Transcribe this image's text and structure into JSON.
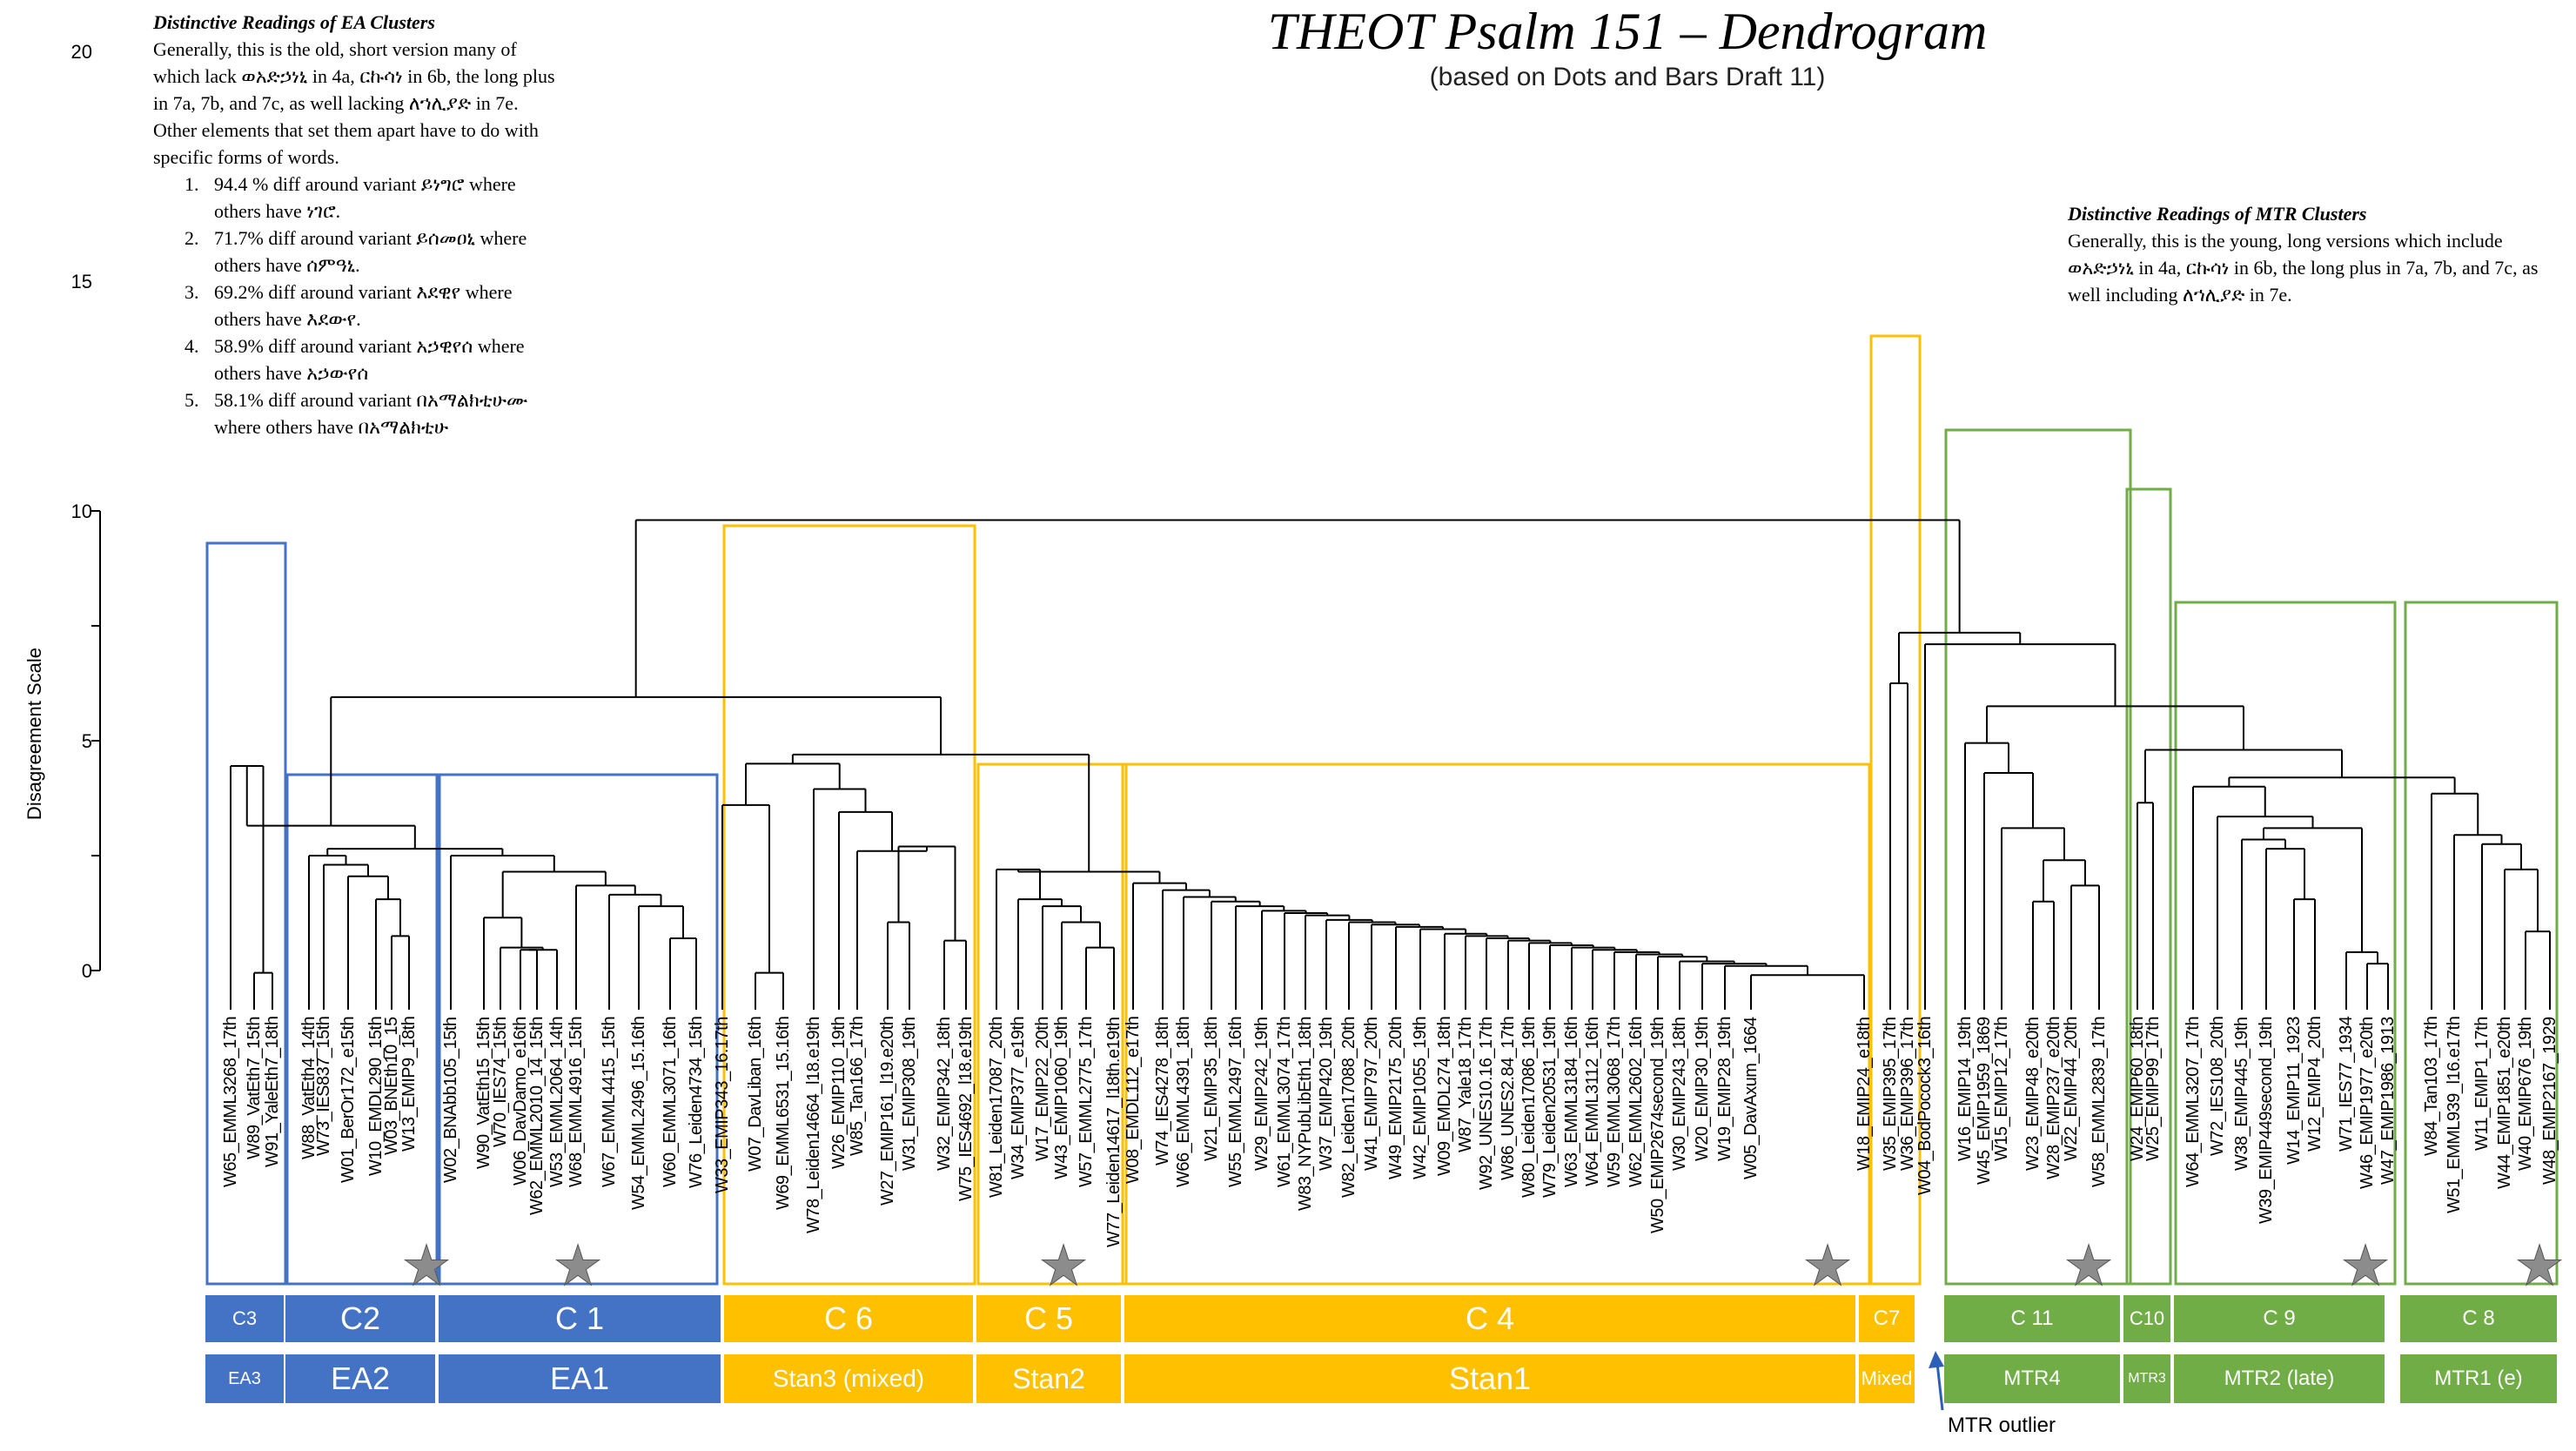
{
  "title": "THEOT Psalm 151 – Dendrogram",
  "subtitle": "(based on Dots and Bars Draft 11)",
  "y_axis": {
    "title": "Disagreement Scale",
    "ticks": [
      "0",
      "5",
      "10",
      "15",
      "20"
    ]
  },
  "ea_notes": {
    "heading": "Distinctive Readings of EA Clusters",
    "intro": "Generally, this is the old, short version many of which lack ወአድኃነኒ in 4a, ርኩሳነ in 6b, the long plus in 7a, 7b, and 7c, as well lacking ለኀሊያድ in 7e. Other elements that set them apart have to do with specific forms of words.",
    "items": [
      "94.4 % diff around variant ይነግሮ where others have ነገሮ.",
      "71.7% diff around variant ይሰመዐኒ where others have ሰምዓኒ.",
      "69.2% diff around variant እደዊየ where others have እደውየ.",
      "58.9% diff around variant አኃዊየሰ where others have አኃውየሰ",
      "58.1% diff around variant በአማልክቲሁሙ where others have በአማልክቲሁ"
    ]
  },
  "mtr_notes": {
    "heading": "Distinctive Readings of MTR Clusters",
    "intro": "Generally, this is the young, long versions which include ወአድኃነኒ in 4a, ርኩሳነ in 6b, the long plus in 7a, 7b, and 7c, as well including ለኀሊያድ in 7e."
  },
  "leaves": [
    "W65_EMML3268_17th",
    "W89_VatEth7_15th",
    "W91_YaleEth7_18th",
    "W88_VatEth4_14th",
    "W73_IES837_15th",
    "W01_BerOr172_e15th",
    "W10_EMDL290_15th",
    "W03_BNEth10_15",
    "W13_EMIP9_18th",
    "W02_BNAbb105_15th",
    "W90_VatEth15_15th",
    "W70_IES74_15th",
    "W06_DavDamo_e16th",
    "W62_EMML2010_14_15th",
    "W53_EMML2064_14th",
    "W68_EMML4916_15th",
    "W67_EMML4415_15th",
    "W54_EMML2496_15.16th",
    "W60_EMML3071_16th",
    "W76_Leiden4734_15th",
    "W33_EMIP343_16.17th",
    "W07_DavLiban_16th",
    "W69_EMML6531_15.16th",
    "W78_Leiden14664_l18.e19th",
    "W26_EMIP110_19th",
    "W85_Tan166_17th",
    "W27_EMIP161_l19.e20th",
    "W31_EMIP308_19th",
    "W32_EMIP342_18th",
    "W75_IES4692_l18.e19th",
    "W81_Leiden17087_20th",
    "W34_EMIP377_e19th",
    "W17_EMIP22_20th",
    "W43_EMIP1060_19th",
    "W57_EMML2775_17th",
    "W77_Leiden14617_l18th.e19th",
    "W08_EMDL112_e17th",
    "W74_IES4278_18th",
    "W66_EMML4391_18th",
    "W21_EMIP35_18th",
    "W55_EMML2497_16th",
    "W29_EMIP242_19th",
    "W61_EMML3074_17th",
    "W83_NYPubLibEth1_18th",
    "W37_EMIP420_19th",
    "W82_Leiden17088_20th",
    "W41_EMIP797_20th",
    "W49_EMIP2175_20th",
    "W42_EMIP1055_19th",
    "W09_EMDL274_18th",
    "W87_Yale18_17th",
    "W92_UNES10.16_17th",
    "W86_UNES2.84_17th",
    "W80_Leiden17086_19th",
    "W79_Leiden20531_19th",
    "W63_EMML3184_16th",
    "W64_EMML3112_16th",
    "W59_EMML3068_17th",
    "W62_EMML2602_16th",
    "W50_EMIP2674second_19th",
    "W30_EMIP243_18th",
    "W20_EMIP30_19th",
    "W19_EMIP28_19th",
    "W05_DavAxum_1664",
    "W18_EMIP24_e18th",
    "W35_EMIP395_17th",
    "W36_EMIP396_17th",
    "W04_BodPocock3_16th",
    "W16_EMIP14_19th",
    "W45_EMIP1959_1869",
    "W15_EMIP12_17th",
    "W23_EMIP48_e20th",
    "W28_EMIP237_e20th",
    "W22_EMIP44_20th",
    "W58_EMML2839_17th",
    "W24_EMIP60_18th",
    "W25_EMIP99_17th",
    "W64_EMML3207_17th",
    "W72_IES108_20th",
    "W38_EMIP445_19th",
    "W39_EMIP449second_19th",
    "W14_EMIP11_1923",
    "W12_EMIP4_20th",
    "W71_IES77_1934",
    "W46_EMIP1977_e20th",
    "W47_EMIP1986_1913",
    "W84_Tan103_17th",
    "W51_EMML939_l16.e17th",
    "W11_EMIP1_17th",
    "W44_EMIP1851_e20th",
    "W40_EMIP676_19th",
    "W48_EMIP2167_1929"
  ],
  "cluster_labels": [
    {
      "label": "C3",
      "group": "EA3",
      "color": "blue"
    },
    {
      "label": "C2",
      "group": "EA2",
      "color": "blue"
    },
    {
      "label": "C 1",
      "group": "EA1",
      "color": "blue"
    },
    {
      "label": "C 6",
      "group": "Stan3 (mixed)",
      "color": "gold"
    },
    {
      "label": "C 5",
      "group": "Stan2",
      "color": "gold"
    },
    {
      "label": "C 4",
      "group": "Stan1",
      "color": "gold"
    },
    {
      "label": "C7",
      "group": "Mixed",
      "color": "gold"
    },
    {
      "label": "C 11",
      "group": "MTR4",
      "color": "green"
    },
    {
      "label": "C10",
      "group": "MTR3",
      "color": "green"
    },
    {
      "label": "C 9",
      "group": "MTR2 (late)",
      "color": "green"
    },
    {
      "label": "C 8",
      "group": "MTR1 (e)",
      "color": "green"
    }
  ],
  "outlier_label": "MTR outlier",
  "colors": {
    "blue": "#4472C4",
    "gold": "#FFC000",
    "green": "#70AD47",
    "line": "#000000",
    "star": "#8c8c8c"
  }
}
